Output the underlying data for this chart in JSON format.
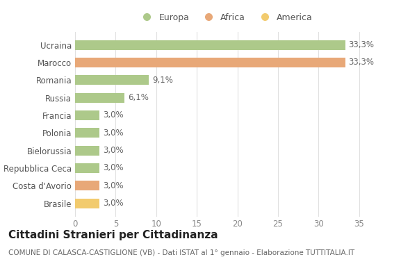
{
  "categories": [
    "Brasile",
    "Costa d'Avorio",
    "Repubblica Ceca",
    "Bielorussia",
    "Polonia",
    "Francia",
    "Russia",
    "Romania",
    "Marocco",
    "Ucraina"
  ],
  "values": [
    3.0,
    3.0,
    3.0,
    3.0,
    3.0,
    3.0,
    6.1,
    9.1,
    33.3,
    33.3
  ],
  "labels": [
    "3,0%",
    "3,0%",
    "3,0%",
    "3,0%",
    "3,0%",
    "3,0%",
    "6,1%",
    "9,1%",
    "33,3%",
    "33,3%"
  ],
  "colors": [
    "#f2cb6e",
    "#e8a878",
    "#adc98a",
    "#adc98a",
    "#adc98a",
    "#adc98a",
    "#adc98a",
    "#adc98a",
    "#e8a878",
    "#adc98a"
  ],
  "legend_labels": [
    "Europa",
    "Africa",
    "America"
  ],
  "legend_colors": [
    "#adc98a",
    "#e8a878",
    "#f2cb6e"
  ],
  "title": "Cittadini Stranieri per Cittadinanza",
  "subtitle": "COMUNE DI CALASCA-CASTIGLIONE (VB) - Dati ISTAT al 1° gennaio - Elaborazione TUTTITALIA.IT",
  "xlim": [
    0,
    37
  ],
  "xticks": [
    0,
    5,
    10,
    15,
    20,
    25,
    30,
    35
  ],
  "background_color": "#ffffff",
  "grid_color": "#e0e0e0",
  "bar_height": 0.55,
  "label_fontsize": 8.5,
  "title_fontsize": 11,
  "subtitle_fontsize": 7.5,
  "tick_fontsize": 8.5,
  "legend_fontsize": 9
}
